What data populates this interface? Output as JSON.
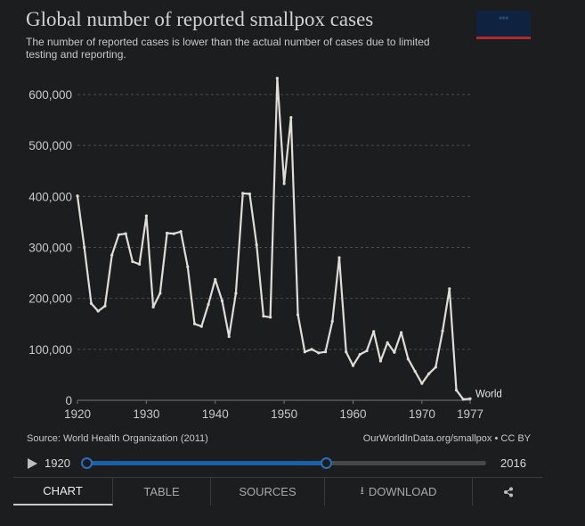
{
  "header": {
    "title": "Global number of reported smallpox cases",
    "subtitle": "The number of reported cases is lower than the actual number of cases due to limited testing and reporting."
  },
  "chart_data": {
    "type": "line",
    "ylim": [
      0,
      600000
    ],
    "xlim": [
      1920,
      1977
    ],
    "yticks": [
      0,
      100000,
      200000,
      300000,
      400000,
      500000,
      600000
    ],
    "ytick_labels": [
      "0",
      "100,000",
      "200,000",
      "300,000",
      "400,000",
      "500,000",
      "600,000"
    ],
    "xticks": [
      1920,
      1930,
      1940,
      1950,
      1960,
      1970,
      1977
    ],
    "xtick_labels": [
      "1920",
      "1930",
      "1940",
      "1950",
      "1960",
      "1970",
      "1977"
    ],
    "grid": "horizontal dashed",
    "series": [
      {
        "name": "World",
        "color": "#e0ddd8",
        "x": [
          1920,
          1921,
          1922,
          1923,
          1924,
          1925,
          1926,
          1927,
          1928,
          1929,
          1930,
          1931,
          1932,
          1933,
          1934,
          1935,
          1936,
          1937,
          1938,
          1939,
          1940,
          1941,
          1942,
          1943,
          1944,
          1945,
          1946,
          1947,
          1948,
          1949,
          1950,
          1951,
          1952,
          1953,
          1954,
          1955,
          1956,
          1957,
          1958,
          1959,
          1960,
          1961,
          1962,
          1963,
          1964,
          1965,
          1966,
          1967,
          1968,
          1969,
          1970,
          1971,
          1972,
          1973,
          1974,
          1975,
          1976,
          1977
        ],
        "values": [
          401000,
          300000,
          190000,
          175000,
          185000,
          285000,
          325000,
          327000,
          272000,
          267000,
          362000,
          183000,
          210000,
          328000,
          327000,
          331000,
          262000,
          150000,
          145000,
          188000,
          237000,
          195000,
          125000,
          210000,
          406000,
          405000,
          305000,
          165000,
          163000,
          632000,
          425000,
          555000,
          168000,
          95000,
          100000,
          93000,
          95000,
          155000,
          280000,
          95000,
          68000,
          90000,
          97000,
          135000,
          77000,
          113000,
          94000,
          133000,
          81000,
          57000,
          33000,
          52000,
          65000,
          136000,
          219000,
          20000,
          2000,
          3000
        ]
      }
    ]
  },
  "footer": {
    "source": "Source: World Health Organization (2011)",
    "license": "OurWorldInData.org/smallpox • CC BY"
  },
  "timeline": {
    "start_label": "1920",
    "end_label": "2016",
    "selected_start_fraction": 0,
    "selected_end_fraction": 0.6
  },
  "tabs": {
    "chart": "CHART",
    "table": "TABLE",
    "sources": "SOURCES",
    "download": "DOWNLOAD",
    "share_icon": "share-icon",
    "download_icon": "download-icon"
  }
}
